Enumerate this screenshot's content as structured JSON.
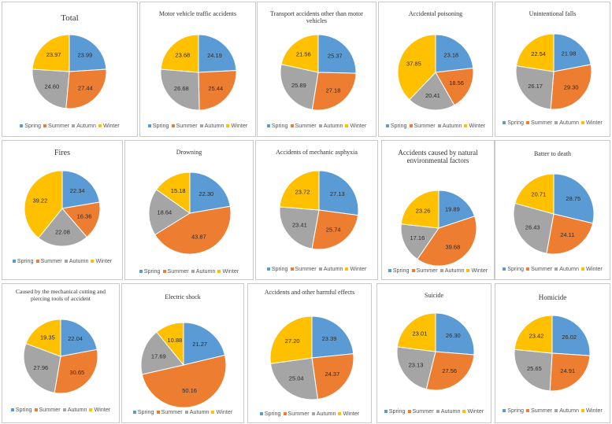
{
  "legend_labels": [
    "Spring",
    "Summer",
    "Autumn",
    "Winter"
  ],
  "colors": [
    "#5b9bd5",
    "#ed7d31",
    "#a5a5a5",
    "#ffc000"
  ],
  "chart_data": [
    {
      "type": "pie",
      "title": "Total",
      "categories": [
        "Spring",
        "Summer",
        "Autumn",
        "Winter"
      ],
      "values": [
        23.99,
        27.44,
        24.6,
        23.97
      ],
      "labels": [
        "23.99",
        "27.44",
        "24.60",
        "23.97"
      ]
    },
    {
      "type": "pie",
      "title": "Motor vehicle traffic accidents",
      "categories": [
        "Spring",
        "Summer",
        "Autumn",
        "Winter"
      ],
      "values": [
        24.19,
        25.44,
        26.68,
        23.68
      ],
      "labels": [
        "24.19",
        "25.44",
        "26.68",
        "23.68"
      ]
    },
    {
      "type": "pie",
      "title": "Transport accidents other than motor vehicles",
      "categories": [
        "Spring",
        "Summer",
        "Autumn",
        "Winter"
      ],
      "values": [
        25.37,
        27.18,
        25.89,
        21.56
      ],
      "labels": [
        "25.37",
        "27.18",
        "25.89",
        "21.56"
      ]
    },
    {
      "type": "pie",
      "title": "Accidental poisoning",
      "categories": [
        "Spring",
        "Summer",
        "Autumn",
        "Winter"
      ],
      "values": [
        23.18,
        18.56,
        20.41,
        37.85
      ],
      "labels": [
        "23.18",
        "18.56",
        "20.41",
        "37.85"
      ]
    },
    {
      "type": "pie",
      "title": "Unintentional falls",
      "categories": [
        "Spring",
        "Summer",
        "Autumn",
        "Winter"
      ],
      "values": [
        21.98,
        29.3,
        26.17,
        22.54
      ],
      "labels": [
        "21.98",
        "29.30",
        "26.17",
        "22.54"
      ]
    },
    {
      "type": "pie",
      "title": "Fires",
      "categories": [
        "Spring",
        "Summer",
        "Autumn",
        "Winter"
      ],
      "values": [
        22.34,
        16.36,
        22.08,
        39.22
      ],
      "labels": [
        "22.34",
        "16.36",
        "22.08",
        "39.22"
      ]
    },
    {
      "type": "pie",
      "title": "Drowning",
      "categories": [
        "Spring",
        "Summer",
        "Autumn",
        "Winter"
      ],
      "values": [
        22.3,
        43.87,
        18.64,
        15.18
      ],
      "labels": [
        "22.30",
        "43.87",
        "18.64",
        "15.18"
      ]
    },
    {
      "type": "pie",
      "title": "Accidents of mechanic asphyxia",
      "categories": [
        "Spring",
        "Summer",
        "Autumn",
        "Winter"
      ],
      "values": [
        27.13,
        25.74,
        23.41,
        23.72
      ],
      "labels": [
        "27.13",
        "25.74",
        "23.41",
        "23.72"
      ]
    },
    {
      "type": "pie",
      "title": "Accidents caused by natural environmental factors",
      "categories": [
        "Spring",
        "Summer",
        "Autumn",
        "Winter"
      ],
      "values": [
        19.89,
        39.68,
        17.16,
        23.26
      ],
      "labels": [
        "19.89",
        "39.68",
        "17.16",
        "23.26"
      ]
    },
    {
      "type": "pie",
      "title": "Batter to death",
      "categories": [
        "Spring",
        "Summer",
        "Autumn",
        "Winter"
      ],
      "values": [
        28.75,
        24.11,
        26.43,
        20.71
      ],
      "labels": [
        "28.75",
        "24.11",
        "26.43",
        "20.71"
      ]
    },
    {
      "type": "pie",
      "title": "Caused by the mechanical cutting and piercing tools of accident",
      "categories": [
        "Spring",
        "Summer",
        "Autumn",
        "Winter"
      ],
      "values": [
        22.04,
        30.65,
        27.96,
        19.35
      ],
      "labels": [
        "22.04",
        "30.65",
        "27.96",
        "19.35"
      ]
    },
    {
      "type": "pie",
      "title": "Electric shock",
      "categories": [
        "Spring",
        "Summer",
        "Autumn",
        "Winter"
      ],
      "values": [
        21.27,
        50.16,
        17.69,
        10.88
      ],
      "labels": [
        "21.27",
        "50.16",
        "17.69",
        "10.88"
      ]
    },
    {
      "type": "pie",
      "title": "Accidents and other harmful effects",
      "categories": [
        "Spring",
        "Summer",
        "Autumn",
        "Winter"
      ],
      "values": [
        23.39,
        24.37,
        25.04,
        27.2
      ],
      "labels": [
        "23.39",
        "24.37",
        "25.04",
        "27.20"
      ]
    },
    {
      "type": "pie",
      "title": "Suicide",
      "categories": [
        "Spring",
        "Summer",
        "Autumn",
        "Winter"
      ],
      "values": [
        26.3,
        27.56,
        23.13,
        23.01
      ],
      "labels": [
        "26.30",
        "27.56",
        "23.13",
        "23.01"
      ]
    },
    {
      "type": "pie",
      "title": "Homicide",
      "categories": [
        "Spring",
        "Summer",
        "Autumn",
        "Winter"
      ],
      "values": [
        26.02,
        24.91,
        25.65,
        23.42
      ],
      "labels": [
        "26.02",
        "24.91",
        "25.65",
        "23.42"
      ]
    }
  ]
}
